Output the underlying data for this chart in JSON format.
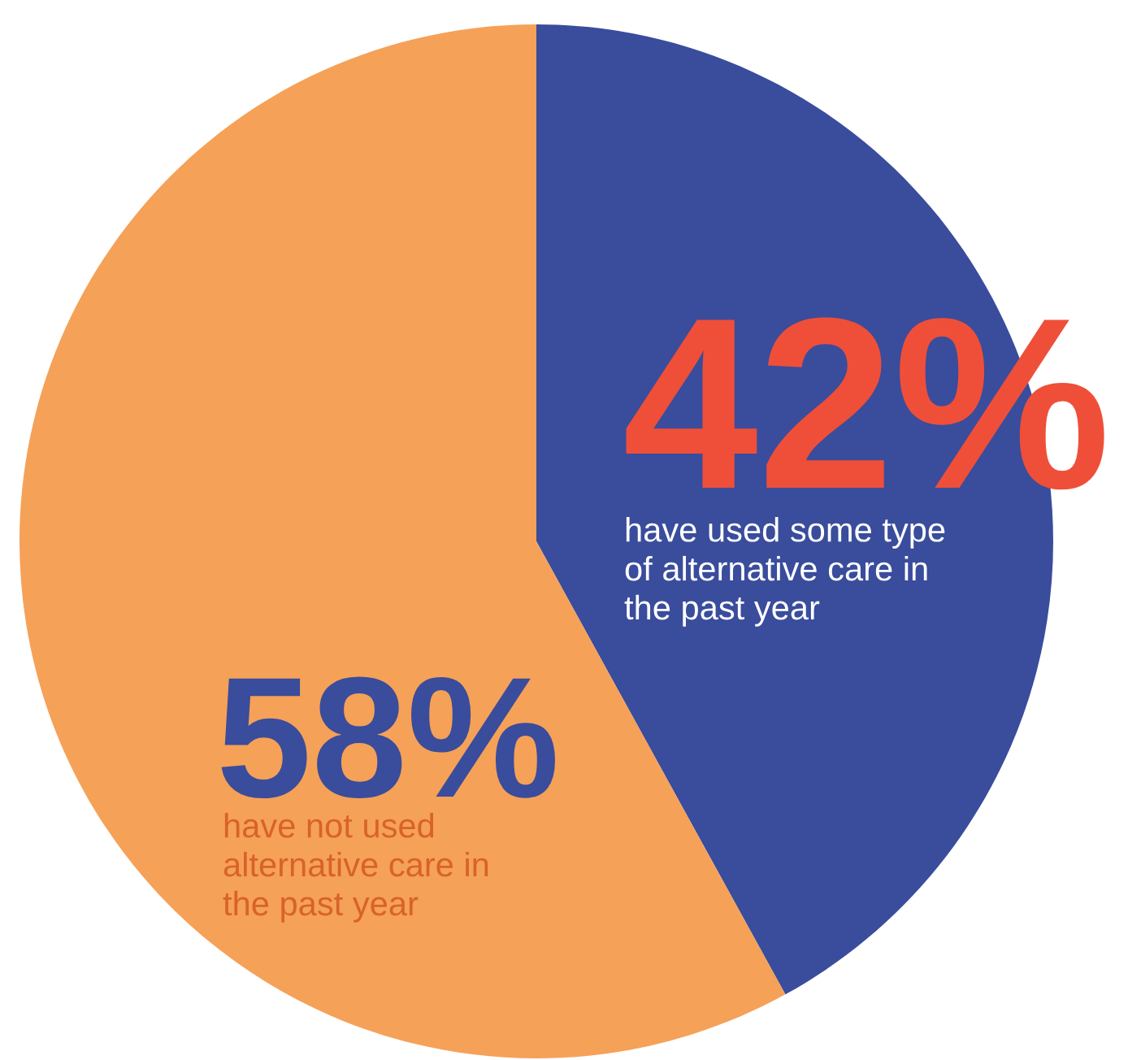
{
  "chart_data": {
    "type": "pie",
    "categories": [
      "have used some type\nof alternative care in\nthe past year",
      "have not used\nalternative care in\nthe past year"
    ],
    "values": [
      42,
      58
    ],
    "colors": [
      "#3a4c9c",
      "#f5a158"
    ],
    "value_labels": [
      "42%",
      "58%"
    ]
  }
}
